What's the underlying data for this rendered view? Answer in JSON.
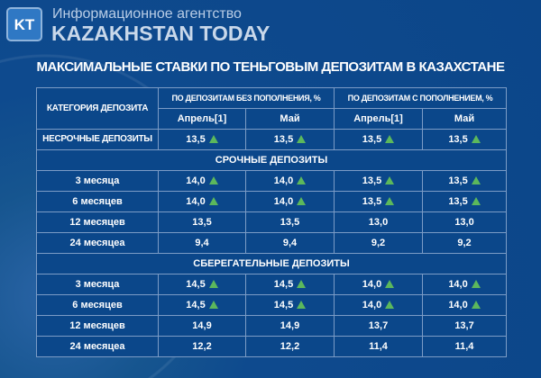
{
  "header": {
    "logo_text": "KT",
    "agency": "Информационное агентство",
    "brand": "KAZAKHSTAN TODAY"
  },
  "title": "МАКСИМАЛЬНЫЕ СТАВКИ ПО ТЕНЬГОВЫМ ДЕПОЗИТАМ В КАЗАХСТАНЕ",
  "table": {
    "category_header": "КАТЕГОРИЯ ДЕПОЗИТА",
    "group1": "ПО ДЕПОЗИТАМ БЕЗ ПОПОЛНЕНИЯ, %",
    "group2": "ПО ДЕПОЗИТАМ С ПОПОЛНЕНИЕМ, %",
    "months": [
      "Апрель[1]",
      "Май",
      "Апрель[1]",
      "Май"
    ],
    "nesrochnye": {
      "label": "НЕСРОЧНЫЕ ДЕПОЗИТЫ",
      "values": [
        "13,5",
        "13,5",
        "13,5",
        "13,5"
      ],
      "up": [
        true,
        true,
        true,
        true
      ]
    },
    "sections": [
      {
        "title": "СРОЧНЫЕ ДЕПОЗИТЫ",
        "rows": [
          {
            "label": "3 месяца",
            "values": [
              "14,0",
              "14,0",
              "13,5",
              "13,5"
            ],
            "up": true
          },
          {
            "label": "6 месяцев",
            "values": [
              "14,0",
              "14,0",
              "13,5",
              "13,5"
            ],
            "up": true
          },
          {
            "label": "12 месяцев",
            "values": [
              "13,5",
              "13,5",
              "13,0",
              "13,0"
            ],
            "up": false
          },
          {
            "label": "24 месяцеа",
            "values": [
              "9,4",
              "9,4",
              "9,2",
              "9,2"
            ],
            "up": false
          }
        ]
      },
      {
        "title": "СБЕРЕГАТЕЛЬНЫЕ ДЕПОЗИТЫ",
        "rows": [
          {
            "label": "3 месяца",
            "values": [
              "14,5",
              "14,5",
              "14,0",
              "14,0"
            ],
            "up": true
          },
          {
            "label": "6 месяцев",
            "values": [
              "14,5",
              "14,5",
              "14,0",
              "14,0"
            ],
            "up": true
          },
          {
            "label": "12 месяцев",
            "values": [
              "14,9",
              "14,9",
              "13,7",
              "13,7"
            ],
            "up": false
          },
          {
            "label": "24 месяцеа",
            "values": [
              "12,2",
              "12,2",
              "11,4",
              "11,4"
            ],
            "up": false
          }
        ]
      }
    ]
  },
  "colors": {
    "background": "#0e4a8e",
    "up_arrow": "#5cb85c",
    "grid": "#7c9cc6"
  }
}
